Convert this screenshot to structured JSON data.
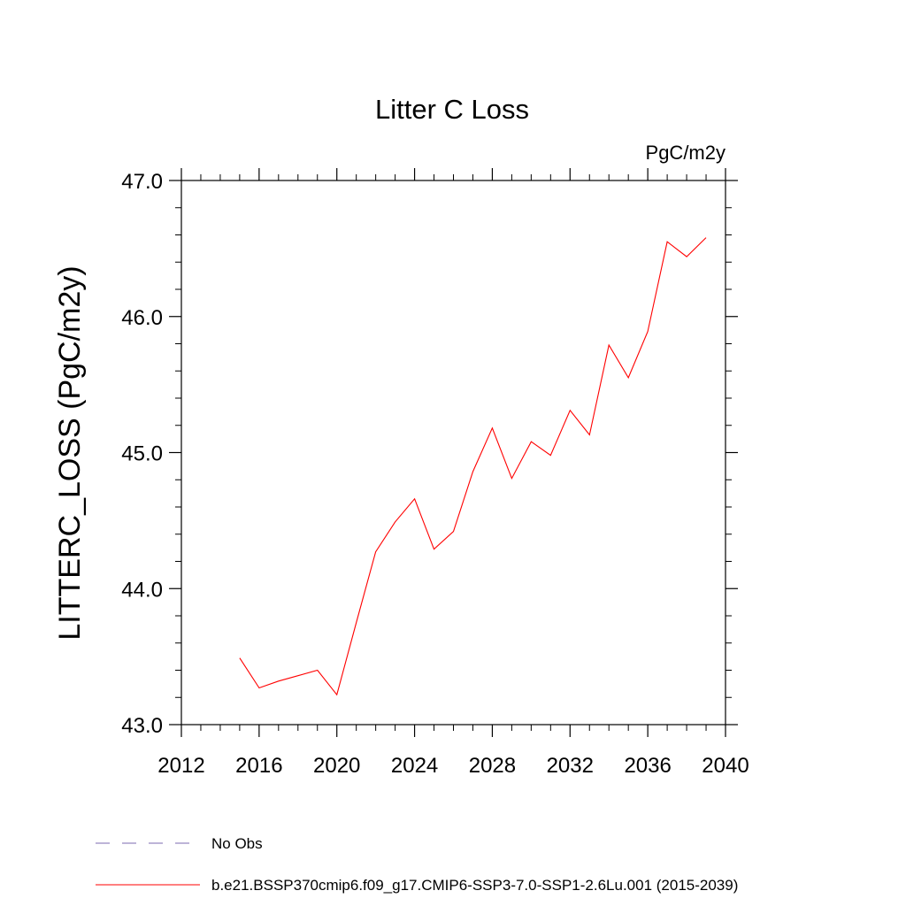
{
  "chart_data": {
    "type": "line",
    "title": "Litter C Loss",
    "units_label": "PgC/m2y",
    "ylabel": "LITTERC_LOSS  (PgC/m2y)",
    "xlabel": "",
    "xlim": [
      2012,
      2040
    ],
    "ylim": [
      43.0,
      47.0
    ],
    "x_ticks": [
      2012,
      2016,
      2020,
      2024,
      2028,
      2032,
      2036,
      2040
    ],
    "x_tick_labels": [
      "2012",
      "2016",
      "2020",
      "2024",
      "2028",
      "2032",
      "2036",
      "2040"
    ],
    "y_ticks": [
      43.0,
      44.0,
      45.0,
      46.0,
      47.0
    ],
    "y_tick_labels": [
      "43.0",
      "44.0",
      "45.0",
      "46.0",
      "47.0"
    ],
    "grid": false,
    "legend_position": "bottom",
    "series": [
      {
        "name": "b.e21.BSSP370cmip6.f09_g17.CMIP6-SSP3-7.0-SSP1-2.6Lu.001 (2015-2039)",
        "color": "#ff0000",
        "x": [
          2015,
          2016,
          2017,
          2018,
          2019,
          2020,
          2021,
          2022,
          2023,
          2024,
          2025,
          2026,
          2027,
          2028,
          2029,
          2030,
          2031,
          2032,
          2033,
          2034,
          2035,
          2036,
          2037,
          2038,
          2039
        ],
        "y": [
          43.49,
          43.27,
          43.32,
          43.36,
          43.4,
          43.22,
          43.75,
          44.27,
          44.49,
          44.66,
          44.29,
          44.42,
          44.86,
          45.18,
          44.81,
          45.08,
          44.98,
          45.31,
          45.13,
          45.79,
          45.55,
          45.89,
          46.55,
          46.44,
          46.58
        ]
      }
    ],
    "legend_entries": [
      {
        "label": "No Obs",
        "color": "#7b68b0",
        "style": "dashed"
      },
      {
        "label": "b.e21.BSSP370cmip6.f09_g17.CMIP6-SSP3-7.0-SSP1-2.6Lu.001 (2015-2039)",
        "color": "#ff0000",
        "style": "solid"
      }
    ]
  }
}
